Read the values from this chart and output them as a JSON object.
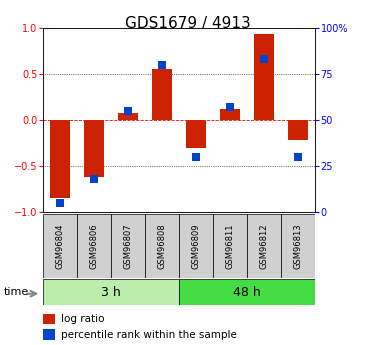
{
  "title": "GDS1679 / 4913",
  "samples": [
    "GSM96804",
    "GSM96806",
    "GSM96807",
    "GSM96808",
    "GSM96809",
    "GSM96811",
    "GSM96812",
    "GSM96813"
  ],
  "log_ratio": [
    -0.85,
    -0.62,
    0.07,
    0.55,
    -0.3,
    0.12,
    0.93,
    -0.22
  ],
  "pct_rank": [
    0.05,
    0.18,
    0.55,
    0.8,
    0.3,
    0.57,
    0.83,
    0.3
  ],
  "bar_color": "#CC2200",
  "dot_color": "#0044CC",
  "groups": [
    {
      "label": "3 h",
      "start": 0,
      "end": 3,
      "color": "#BBEEAA"
    },
    {
      "label": "48 h",
      "start": 4,
      "end": 7,
      "color": "#44DD44"
    }
  ],
  "ylim": [
    -1,
    1
  ],
  "y2lim": [
    0,
    100
  ],
  "yticks": [
    -1,
    -0.5,
    0,
    0.5,
    1
  ],
  "y2ticks": [
    0,
    25,
    50,
    75,
    100
  ],
  "bar_width": 0.6,
  "dot_size": 28,
  "title_fontsize": 11,
  "label_fontsize": 6,
  "tick_fontsize": 7,
  "group_fontsize": 9,
  "legend_fontsize": 7.5
}
